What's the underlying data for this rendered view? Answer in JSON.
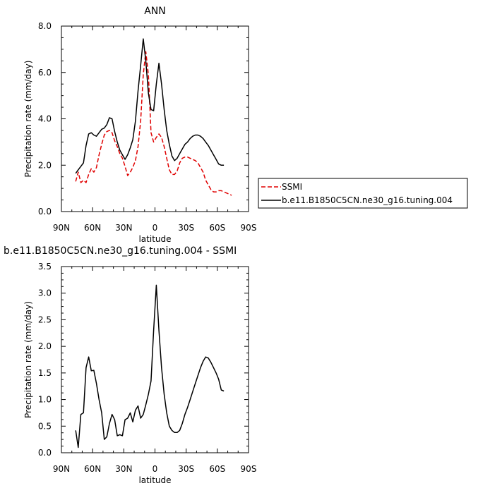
{
  "chart_data": [
    {
      "type": "line",
      "title": "ANN",
      "xlabel": "latitude",
      "ylabel": "Precipitation rate (mm/day)",
      "xlim": [
        90,
        -90
      ],
      "ylim": [
        0,
        8
      ],
      "xticks": [
        90,
        60,
        30,
        0,
        -30,
        -60,
        -90
      ],
      "xtick_labels": [
        "90N",
        "60N",
        "30N",
        "0",
        "30S",
        "60S",
        "90S"
      ],
      "yticks": [
        0,
        2,
        4,
        6,
        8
      ],
      "ytick_labels": [
        "0.0",
        "2.0",
        "4.0",
        "6.0",
        "8.0"
      ],
      "legend_position": "right, outside plot",
      "series": [
        {
          "name": "SSMI",
          "color": "#e00000",
          "style": "dashed",
          "x": [
            76.3,
            73.8,
            71.3,
            68.8,
            66.3,
            63.8,
            61.3,
            58.8,
            56.3,
            53.8,
            51.3,
            48.8,
            46.3,
            43.8,
            41.3,
            38.8,
            36.3,
            33.8,
            31.3,
            28.8,
            26.3,
            23.8,
            21.3,
            18.8,
            16.3,
            13.8,
            11.3,
            8.8,
            6.3,
            3.8,
            1.3,
            -1.3,
            -3.8,
            -6.3,
            -8.8,
            -11.3,
            -13.8,
            -16.3,
            -18.8,
            -21.3,
            -23.8,
            -26.3,
            -28.8,
            -31.3,
            -33.8,
            -36.3,
            -38.8,
            -41.3,
            -43.8,
            -46.3,
            -48.8,
            -51.3,
            -53.8,
            -56.3,
            -58.8,
            -61.3,
            -63.8,
            -66.3,
            -68.8,
            -71.3,
            -73.8
          ],
          "y": [
            1.3,
            1.7,
            1.25,
            1.35,
            1.25,
            1.6,
            1.85,
            1.7,
            1.9,
            2.45,
            2.9,
            3.3,
            3.45,
            3.5,
            3.4,
            3.05,
            2.8,
            2.5,
            2.3,
            1.95,
            1.55,
            1.7,
            1.9,
            2.2,
            2.8,
            3.9,
            5.9,
            6.9,
            5.9,
            3.4,
            3.0,
            3.2,
            3.35,
            3.2,
            2.8,
            2.3,
            1.8,
            1.6,
            1.6,
            1.75,
            2.1,
            2.3,
            2.35,
            2.35,
            2.3,
            2.25,
            2.2,
            2.1,
            1.9,
            1.7,
            1.35,
            1.15,
            0.95,
            0.85,
            0.85,
            0.9,
            0.9,
            0.85,
            0.8,
            0.75,
            0.7
          ]
        },
        {
          "name": "b.e11.B1850C5CN.ne30_g16.tuning.004",
          "color": "#000000",
          "style": "solid",
          "x": [
            76.3,
            73.8,
            71.3,
            68.8,
            66.3,
            63.8,
            61.3,
            58.8,
            56.3,
            53.8,
            51.3,
            48.8,
            46.3,
            43.8,
            41.3,
            38.8,
            36.3,
            33.8,
            31.3,
            28.8,
            26.3,
            23.8,
            21.3,
            18.8,
            16.3,
            13.8,
            11.3,
            8.8,
            6.3,
            3.8,
            1.3,
            -1.3,
            -3.8,
            -6.3,
            -8.8,
            -11.3,
            -13.8,
            -16.3,
            -18.8,
            -21.3,
            -23.8,
            -26.3,
            -28.8,
            -31.3,
            -33.8,
            -36.3,
            -38.8,
            -41.3,
            -43.8,
            -46.3,
            -48.8,
            -51.3,
            -53.8,
            -56.3,
            -58.8,
            -61.3,
            -63.8,
            -66.3
          ],
          "y": [
            1.65,
            1.8,
            1.95,
            2.1,
            2.85,
            3.35,
            3.4,
            3.3,
            3.25,
            3.4,
            3.55,
            3.6,
            3.75,
            4.05,
            4.0,
            3.45,
            3.0,
            2.65,
            2.45,
            2.25,
            2.45,
            2.75,
            3.1,
            3.9,
            5.2,
            6.3,
            7.45,
            6.5,
            5.1,
            4.4,
            4.35,
            5.5,
            6.4,
            5.5,
            4.4,
            3.5,
            2.9,
            2.4,
            2.2,
            2.3,
            2.5,
            2.7,
            2.9,
            3.0,
            3.15,
            3.25,
            3.3,
            3.3,
            3.25,
            3.15,
            3.0,
            2.85,
            2.65,
            2.45,
            2.25,
            2.05,
            2.0,
            2.0
          ]
        }
      ]
    },
    {
      "type": "line",
      "title": "b.e11.B1850C5CN.ne30_g16.tuning.004 - SSMI",
      "xlabel": "latitude",
      "ylabel": "Precipitation rate (mm/day)",
      "xlim": [
        90,
        -90
      ],
      "ylim": [
        0,
        3.5
      ],
      "xticks": [
        90,
        60,
        30,
        0,
        -30,
        -60,
        -90
      ],
      "xtick_labels": [
        "90N",
        "60N",
        "30N",
        "0",
        "30S",
        "60S",
        "90S"
      ],
      "yticks": [
        0,
        0.5,
        1.0,
        1.5,
        2.0,
        2.5,
        3.0,
        3.5
      ],
      "ytick_labels": [
        "0.0",
        "0.5",
        "1.0",
        "1.5",
        "2.0",
        "2.5",
        "3.0",
        "3.5"
      ],
      "series": [
        {
          "color": "#000000",
          "style": "solid",
          "x": [
            76.3,
            73.8,
            71.3,
            68.8,
            66.3,
            63.8,
            61.3,
            58.8,
            56.3,
            53.8,
            51.3,
            48.8,
            46.3,
            43.8,
            41.3,
            38.8,
            36.3,
            33.8,
            31.3,
            28.8,
            26.3,
            23.8,
            21.3,
            18.8,
            16.3,
            13.8,
            11.3,
            8.8,
            6.3,
            3.8,
            1.3,
            -1.3,
            -3.8,
            -6.3,
            -8.8,
            -11.3,
            -13.8,
            -16.3,
            -18.8,
            -21.3,
            -23.8,
            -26.3,
            -28.8,
            -31.3,
            -33.8,
            -36.3,
            -38.8,
            -41.3,
            -43.8,
            -46.3,
            -48.8,
            -51.3,
            -53.8,
            -56.3,
            -58.8,
            -61.3,
            -63.8,
            -66.3
          ],
          "y": [
            0.42,
            0.1,
            0.72,
            0.75,
            1.6,
            1.8,
            1.54,
            1.55,
            1.3,
            1.0,
            0.75,
            0.25,
            0.3,
            0.55,
            0.72,
            0.62,
            0.32,
            0.34,
            0.32,
            0.62,
            0.65,
            0.75,
            0.58,
            0.8,
            0.88,
            0.65,
            0.72,
            0.9,
            1.1,
            1.35,
            2.3,
            3.15,
            2.3,
            1.6,
            1.1,
            0.75,
            0.5,
            0.42,
            0.38,
            0.38,
            0.42,
            0.55,
            0.72,
            0.85,
            1.0,
            1.15,
            1.3,
            1.45,
            1.6,
            1.72,
            1.8,
            1.78,
            1.7,
            1.6,
            1.5,
            1.38,
            1.18,
            1.16
          ]
        }
      ]
    }
  ]
}
